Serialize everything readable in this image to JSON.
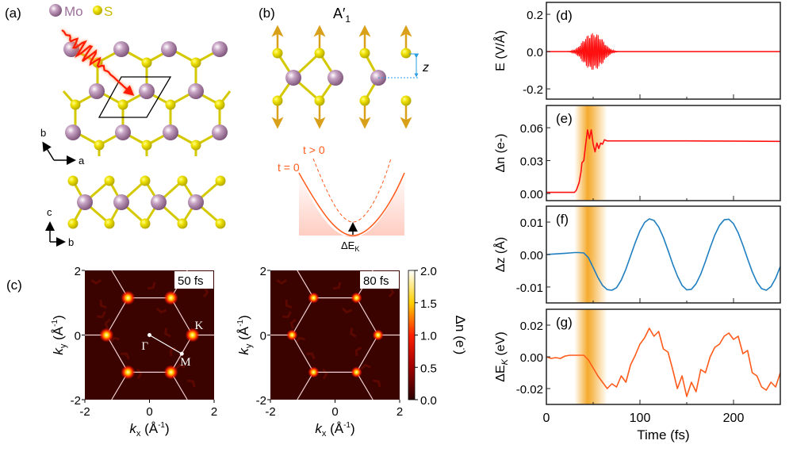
{
  "panel_labels": {
    "a": "(a)",
    "b": "(b)",
    "c": "(c)",
    "d": "(d)",
    "e": "(e)",
    "f": "(f)",
    "g": "(g)"
  },
  "legend": {
    "mo": "Mo",
    "s": "S"
  },
  "atoms_colors": {
    "mo": "#9d7099",
    "s": "#e0d800",
    "bond_s": "#d4c900",
    "arrow": "#d9a01a",
    "laser": "#ff1a00"
  },
  "axes_a": {
    "top_x": "a",
    "top_y": "b",
    "side_x": "b",
    "side_y": "c"
  },
  "panel_b": {
    "title": "A′",
    "title_sub": "1",
    "z_label": "z",
    "t_pos": "t > 0",
    "t_zero": "t = 0",
    "de_label": "ΔE",
    "de_sub": "K"
  },
  "bz": {
    "maps": [
      {
        "time_label": "50 fs"
      },
      {
        "time_label": "80 fs"
      }
    ],
    "points": {
      "gamma": "Γ",
      "k": "K",
      "m": "M"
    },
    "ticks": [
      "-2",
      "0",
      "2"
    ],
    "y_ticks": [
      "2",
      "0",
      "-2"
    ],
    "xlabel": {
      "k": "k",
      "sub": "x",
      "unit": " (Å",
      "sup": "-1",
      "close": ")"
    },
    "ylabel": {
      "k": "k",
      "sub": "y",
      "unit": " (Å",
      "sup": "-1",
      "close": ")"
    },
    "colorbar": {
      "ticks": [
        "2.0",
        "1.5",
        "1.0",
        "0.5",
        "0.0"
      ],
      "label": "Δn (e",
      "label_sup": "-",
      "label_close": ")",
      "range": [
        0,
        2
      ]
    }
  },
  "chart_data": [
    {
      "id": "d",
      "type": "line",
      "ylabel": "E (V/Å)",
      "yticks": [
        "0.2",
        "0.0",
        "-0.2"
      ],
      "ytick_values": [
        0.2,
        0,
        -0.2
      ],
      "ylim": [
        -0.255,
        0.264
      ],
      "xlim": [
        0,
        250
      ],
      "color": "#ff1010",
      "pulse": {
        "peak_amplitude": 0.1,
        "center_fs": 50,
        "envelope_x": [
          20,
          25,
          30,
          35,
          40,
          45,
          50,
          55,
          60,
          65,
          70,
          75,
          80
        ],
        "envelope_y": [
          0.0,
          0.002,
          0.01,
          0.03,
          0.065,
          0.092,
          0.1,
          0.092,
          0.065,
          0.03,
          0.01,
          0.002,
          0.0
        ]
      }
    },
    {
      "id": "e",
      "type": "line",
      "ylabel": "Δn (e-)",
      "yticks": [
        "0.06",
        "0.03",
        "0.00"
      ],
      "ytick_values": [
        0.06,
        0.03,
        0
      ],
      "ylim": [
        -0.0065,
        0.0803
      ],
      "xlim": [
        0,
        250
      ],
      "color": "#ff1010",
      "x": [
        0,
        10,
        20,
        30,
        32,
        35,
        37,
        38,
        40,
        42,
        44,
        46,
        48,
        50,
        52,
        54,
        56,
        58,
        60,
        62,
        65,
        80,
        100,
        150,
        200,
        250
      ],
      "y": [
        0.001,
        0.001,
        0.001,
        0.001,
        0.003,
        0.01,
        0.02,
        0.028,
        0.03,
        0.045,
        0.058,
        0.05,
        0.058,
        0.045,
        0.038,
        0.046,
        0.041,
        0.046,
        0.045,
        0.049,
        0.048,
        0.048,
        0.048,
        0.048,
        0.0478,
        0.0475
      ]
    },
    {
      "id": "f",
      "type": "line",
      "ylabel": "Δz (Å)",
      "yticks": [
        "0.01",
        "0.00",
        "-0.01"
      ],
      "ytick_values": [
        0.01,
        0,
        -0.01
      ],
      "ylim": [
        -0.0149,
        0.0149
      ],
      "xlim": [
        0,
        250
      ],
      "color": "#1f7fc0",
      "x": [
        0,
        5,
        10,
        15,
        20,
        25,
        30,
        35,
        40,
        45,
        50,
        55,
        60,
        65,
        70,
        75,
        80,
        85,
        90,
        95,
        100,
        105,
        110,
        115,
        120,
        125,
        130,
        135,
        140,
        145,
        150,
        155,
        160,
        165,
        170,
        175,
        180,
        185,
        190,
        195,
        200,
        205,
        210,
        215,
        220,
        225,
        230,
        235,
        240,
        245,
        250
      ],
      "y": [
        0,
        0.0001,
        0.0002,
        0.0003,
        0.0004,
        0.0005,
        0.0006,
        0.0006,
        0.0005,
        -0.001,
        -0.004,
        -0.007,
        -0.0095,
        -0.0108,
        -0.011,
        -0.0102,
        -0.0079,
        -0.0045,
        -0.0004,
        0.0037,
        0.0073,
        0.0099,
        0.011,
        0.0105,
        0.0085,
        0.0053,
        0.0013,
        -0.0029,
        -0.0066,
        -0.0095,
        -0.0109,
        -0.0107,
        -0.009,
        -0.006,
        -0.0021,
        0.0021,
        0.006,
        0.009,
        0.0107,
        0.0109,
        0.0095,
        0.0067,
        0.0029,
        -0.0013,
        -0.0053,
        -0.0085,
        -0.0105,
        -0.011,
        -0.0099,
        -0.0073,
        -0.0037
      ]
    },
    {
      "id": "g",
      "type": "line",
      "ylabel": "ΔE",
      "ylabel_sub": "K",
      "ylabel_unit": " (eV)",
      "yticks": [
        "0.02",
        "0.00",
        "-0.02"
      ],
      "ytick_values": [
        0.02,
        0,
        -0.02
      ],
      "ylim": [
        -0.03,
        0.03
      ],
      "xlim": [
        0,
        250
      ],
      "color": "#ff5a1a",
      "xlabel": "Time (fs)",
      "xticks": [
        "0",
        "100",
        "200"
      ],
      "xtick_values": [
        0,
        100,
        200
      ],
      "x": [
        0,
        5,
        10,
        15,
        20,
        25,
        30,
        35,
        40,
        45,
        50,
        55,
        60,
        65,
        70,
        75,
        80,
        85,
        90,
        95,
        100,
        105,
        110,
        115,
        120,
        125,
        130,
        135,
        140,
        145,
        150,
        155,
        160,
        165,
        170,
        175,
        180,
        185,
        190,
        195,
        200,
        205,
        210,
        215,
        220,
        225,
        230,
        235,
        240,
        245,
        250
      ],
      "y": [
        0,
        -0.001,
        -0.0005,
        -0.001,
        0.0005,
        0.001,
        0.001,
        0.001,
        0.001,
        -0.002,
        -0.007,
        -0.012,
        -0.016,
        -0.02,
        -0.017,
        -0.019,
        -0.012,
        -0.016,
        -0.005,
        0.001,
        0.008,
        0.012,
        0.018,
        0.013,
        0.016,
        0.005,
        0.003,
        -0.008,
        -0.02,
        -0.012,
        -0.025,
        -0.016,
        -0.022,
        -0.008,
        -0.01,
        0.0,
        0.006,
        0.008,
        0.013,
        0.015,
        0.011,
        0.013,
        0.002,
        0.004,
        -0.01,
        -0.012,
        -0.019,
        -0.021,
        -0.016,
        -0.019,
        -0.01
      ]
    }
  ],
  "pump_window_fs": [
    30,
    65
  ],
  "pump_color": "#f5a623"
}
